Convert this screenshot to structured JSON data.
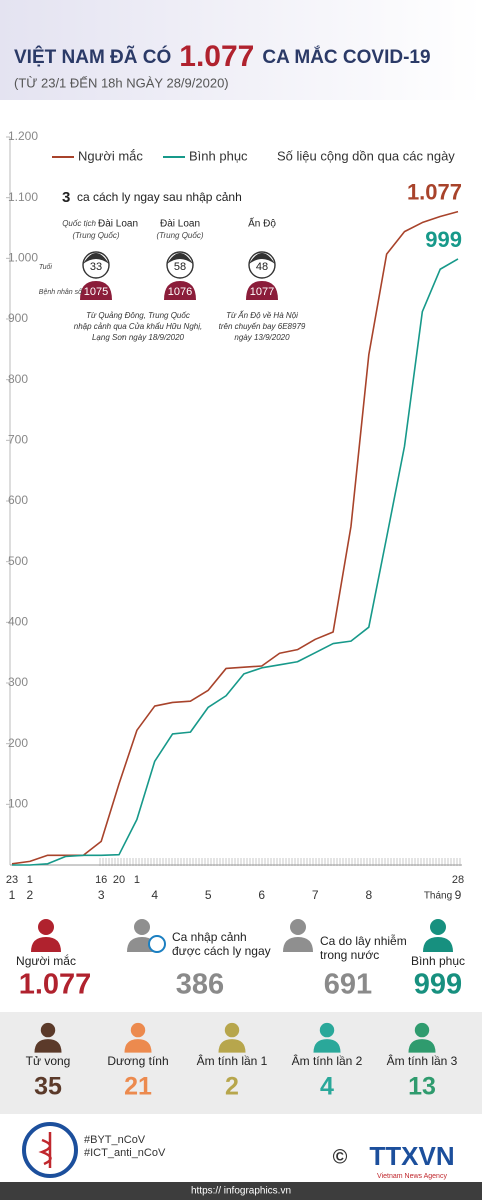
{
  "header": {
    "title_parts": [
      "VIỆT NAM ĐÃ CÓ",
      "1.077",
      "CA MẮC COVID-19"
    ],
    "subtitle": "(TỪ 23/1 ĐẾN 18h NGÀY 28/9/2020)"
  },
  "chart_data": {
    "type": "line",
    "categories": [
      "23",
      "1",
      null,
      null,
      null,
      "16",
      "20",
      "1",
      null,
      null,
      null,
      null,
      null,
      null,
      null,
      null,
      null,
      null,
      null,
      null,
      null,
      null,
      null,
      null,
      null,
      "28"
    ],
    "month_labels": [
      "1",
      "2",
      null,
      null,
      null,
      "3",
      null,
      null,
      "4",
      null,
      null,
      "5",
      null,
      null,
      "6",
      null,
      null,
      "7",
      null,
      null,
      "8",
      null,
      null,
      null,
      null,
      "9"
    ],
    "month_word": "Tháng",
    "note": "Số liệu cộng dồn qua các ngày",
    "series": [
      {
        "name": "Người mắc",
        "color": "#a8432b",
        "values": [
          2,
          6,
          16,
          16,
          16,
          39,
          134,
          222,
          262,
          268,
          270,
          288,
          324,
          326,
          328,
          349,
          355,
          372,
          384,
          558,
          841,
          1007,
          1044,
          1059,
          1069,
          1077
        ],
        "value_labels": [
          null,
          null,
          null,
          null,
          null,
          null,
          null,
          null,
          null,
          null,
          null,
          null,
          null,
          null,
          null,
          null,
          null,
          null,
          null,
          null,
          null,
          null,
          null,
          null,
          null,
          "1.077"
        ]
      },
      {
        "name": "Bình phục",
        "color": "#17998a",
        "values": [
          0,
          0,
          2,
          14,
          16,
          16,
          17,
          75,
          171,
          216,
          219,
          260,
          279,
          315,
          325,
          330,
          335,
          350,
          365,
          369,
          392,
          540,
          690,
          912,
          982,
          999
        ],
        "value_labels": [
          null,
          null,
          null,
          null,
          null,
          null,
          null,
          null,
          null,
          null,
          null,
          null,
          null,
          null,
          null,
          null,
          null,
          null,
          null,
          null,
          null,
          null,
          null,
          null,
          null,
          "999"
        ]
      }
    ],
    "ylim": [
      0,
      1200
    ],
    "yticks": [
      100,
      200,
      300,
      400,
      500,
      600,
      700,
      800,
      900,
      {
        "value": 1000,
        "label": "1.000"
      },
      {
        "value": 1100,
        "label": "1.100"
      },
      {
        "value": 1200,
        "label": "1.200"
      }
    ],
    "grid": false,
    "legend": "top"
  },
  "imported": {
    "heading_count": "3",
    "heading": "ca cách ly ngay sau nhập cảnh",
    "age_label": "Tuổi",
    "id_label": "Bệnh nhân số",
    "nationality_label": "Quốc tịch",
    "patients": [
      {
        "country": "Đài Loan",
        "country_note": "(Trung Quốc)",
        "age": "33",
        "id": "1075"
      },
      {
        "country": "Đài Loan",
        "country_note": "(Trung Quốc)",
        "age": "58",
        "id": "1076"
      },
      {
        "country": "Ấn Độ",
        "country_note": null,
        "age": "48",
        "id": "1077"
      }
    ],
    "notes": [
      [
        "Từ Quảng Đông, Trung Quốc",
        "nhập cảnh qua Cửa khẩu Hữu Nghị,",
        "Lạng Sơn ngày 18/9/2020"
      ],
      [
        "Từ Ấn Độ về Hà Nội",
        "trên chuyến bay 6E8979",
        "ngày 13/9/2020"
      ]
    ]
  },
  "stats": [
    {
      "label": [
        "Người mắc"
      ],
      "value": "1.077"
    },
    {
      "label": [
        "Ca nhập cảnh",
        "được cách ly ngay"
      ],
      "value": "386"
    },
    {
      "label": [
        "Ca do lây nhiễm",
        "trong nước"
      ],
      "value": "691"
    },
    {
      "label": [
        "Bình phục"
      ],
      "value": "999"
    }
  ],
  "details": [
    {
      "label": "Tử vong",
      "value": "35"
    },
    {
      "label": "Dương tính",
      "value": "21"
    },
    {
      "label": "Âm tính lần 1",
      "value": "2"
    },
    {
      "label": "Âm tính lần 2",
      "value": "4"
    },
    {
      "label": "Âm tính lần 3",
      "value": "13"
    }
  ],
  "footer": {
    "hashtags": [
      "#BYT_nCoV",
      "#ICT_anti_nCoV"
    ],
    "copyright": "©",
    "agency": "TTXVN",
    "agency_sub": "Vietnam News Agency",
    "url": "https:// infographics.vn"
  }
}
